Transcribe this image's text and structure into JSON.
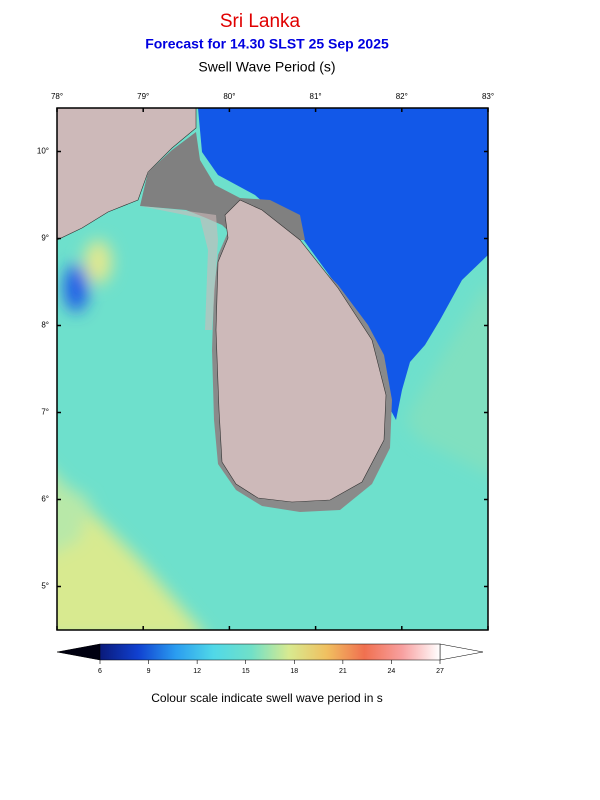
{
  "header": {
    "title": "Sri Lanka",
    "subtitle": "Forecast for  14.30 SLST 25 Sep 2025",
    "variable": "Swell Wave Period (s)"
  },
  "map": {
    "lon_range": [
      78,
      83
    ],
    "lat_range": [
      4.5,
      10.5
    ],
    "lon_ticks": [
      {
        "value": 78,
        "label": "78°"
      },
      {
        "value": 79,
        "label": "79°"
      },
      {
        "value": 80,
        "label": "80°"
      },
      {
        "value": 81,
        "label": "81°"
      },
      {
        "value": 82,
        "label": "82°"
      },
      {
        "value": 83,
        "label": "83°"
      }
    ],
    "lat_ticks": [
      {
        "value": 10,
        "label": "10°"
      },
      {
        "value": 9,
        "label": "9°"
      },
      {
        "value": 8,
        "label": "8°"
      },
      {
        "value": 7,
        "label": "7°"
      },
      {
        "value": 6,
        "label": "6°"
      },
      {
        "value": 5,
        "label": "5°"
      }
    ]
  },
  "colorbar": {
    "range": [
      6,
      27
    ],
    "ticks": [
      6,
      9,
      12,
      15,
      18,
      21,
      24,
      27
    ],
    "colors": [
      "#0a1a7a",
      "#1040d0",
      "#2a9cf0",
      "#50d8e8",
      "#70e0c8",
      "#d8ea90",
      "#f0c060",
      "#f07050",
      "#f8a0a0",
      "#ffffff"
    ]
  },
  "caption": "Colour scale indicate swell wave period in s"
}
